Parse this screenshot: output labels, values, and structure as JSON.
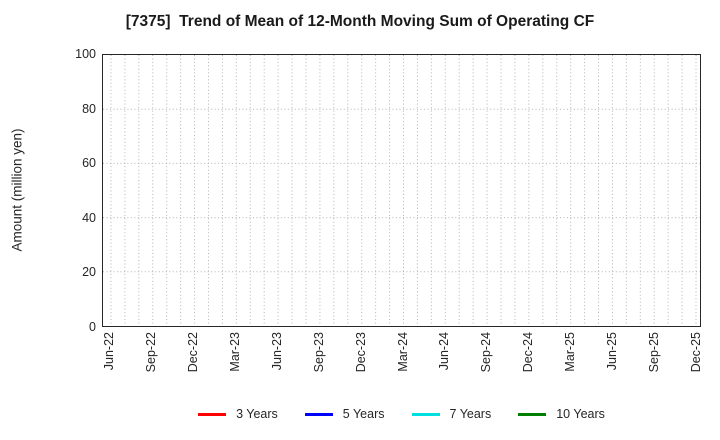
{
  "title": "[7375]  Trend of Mean of 12-Month Moving Sum of Operating CF",
  "y_axis": {
    "label": "Amount (million yen)",
    "tick_labels": [
      "0",
      "20",
      "40",
      "60",
      "80",
      "100"
    ]
  },
  "x_axis": {
    "tick_labels": [
      "Jun-22",
      "Sep-22",
      "Dec-22",
      "Mar-23",
      "Jun-23",
      "Sep-23",
      "Dec-23",
      "Mar-24",
      "Jun-24",
      "Sep-24",
      "Dec-24",
      "Mar-25",
      "Jun-25",
      "Sep-25",
      "Dec-25"
    ]
  },
  "legend": {
    "items": [
      {
        "label": "3 Years",
        "color": "#ff0000"
      },
      {
        "label": "5 Years",
        "color": "#0000ff"
      },
      {
        "label": "7 Years",
        "color": "#00e0e0"
      },
      {
        "label": "10 Years",
        "color": "#008000"
      }
    ]
  },
  "colors": {
    "grid": "#b3b3b3",
    "frame": "#262626",
    "title_text": "#1a1a1a",
    "tick_text": "#262626"
  },
  "chart_data": {
    "type": "line",
    "title": "[7375]  Trend of Mean of 12-Month Moving Sum of Operating CF",
    "xlabel": "",
    "ylabel": "Amount (million yen)",
    "ylim": [
      0,
      100
    ],
    "yticks": [
      0,
      20,
      40,
      60,
      80,
      100
    ],
    "x_tick_labels": [
      "Jun-22",
      "Sep-22",
      "Dec-22",
      "Mar-23",
      "Jun-23",
      "Sep-23",
      "Dec-23",
      "Mar-24",
      "Jun-24",
      "Sep-24",
      "Dec-24",
      "Mar-25",
      "Jun-25",
      "Sep-25",
      "Dec-25"
    ],
    "x_months_total": 43,
    "grid": true,
    "grid_style": "dotted",
    "legend_position": "bottom",
    "series": [
      {
        "name": "3 Years",
        "color": "#ff0000",
        "values": []
      },
      {
        "name": "5 Years",
        "color": "#0000ff",
        "values": []
      },
      {
        "name": "7 Years",
        "color": "#00e0e0",
        "values": []
      },
      {
        "name": "10 Years",
        "color": "#008000",
        "values": []
      }
    ]
  }
}
